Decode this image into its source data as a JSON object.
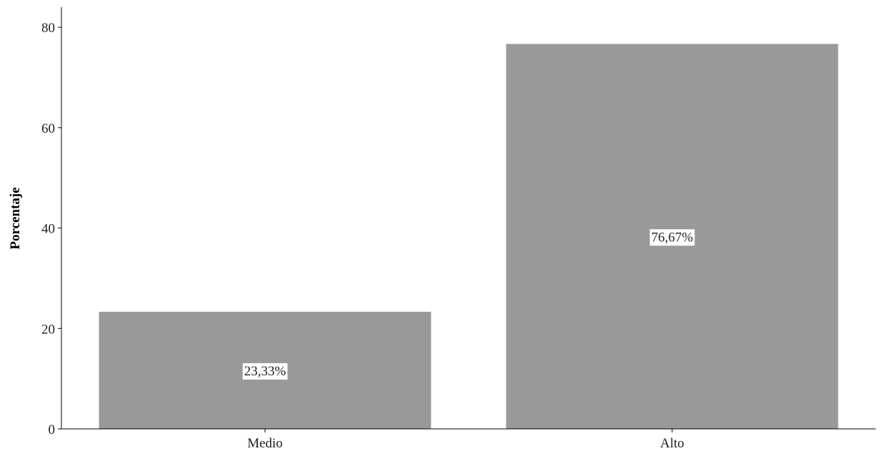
{
  "chart_data": {
    "type": "bar",
    "categories": [
      "Medio",
      "Alto"
    ],
    "values": [
      23.33,
      76.67
    ],
    "data_labels": [
      "23,33%",
      "76,67%"
    ],
    "title": "",
    "xlabel": "",
    "ylabel": "Porcentaje",
    "ylim": [
      0,
      84
    ],
    "yticks": [
      0,
      20,
      40,
      60,
      80
    ],
    "grid": false,
    "legend": "none",
    "bar_color": "#999999",
    "label_box_color": "#ffffff"
  }
}
